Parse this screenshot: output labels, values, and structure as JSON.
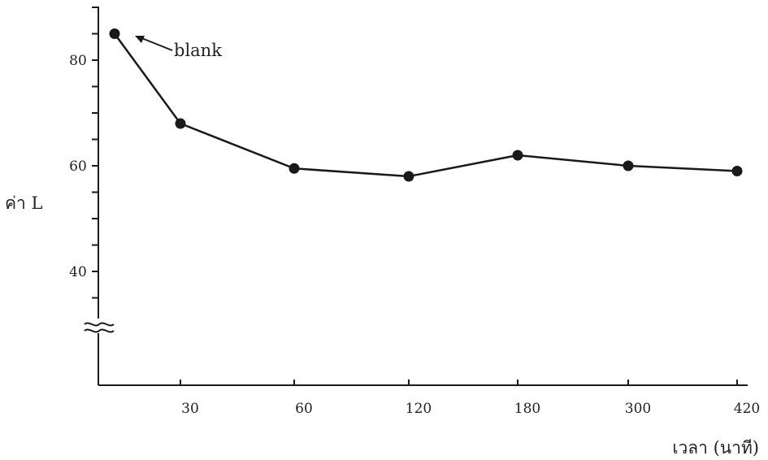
{
  "chart_data": {
    "type": "line",
    "categories": [
      "",
      "30",
      "60",
      "120",
      "180",
      "300",
      "420"
    ],
    "series": [
      {
        "values": [
          85,
          68,
          59.5,
          58,
          62,
          60,
          59
        ]
      }
    ],
    "xlabel": "เวลา (นาที)",
    "ylabel": "ค่า L",
    "yticks": [
      "40",
      "60",
      "80"
    ],
    "ylim": [
      30,
      90
    ],
    "axis_break": true,
    "grid": false,
    "annotations": [
      {
        "text": "blank",
        "target_index": 0
      }
    ]
  }
}
